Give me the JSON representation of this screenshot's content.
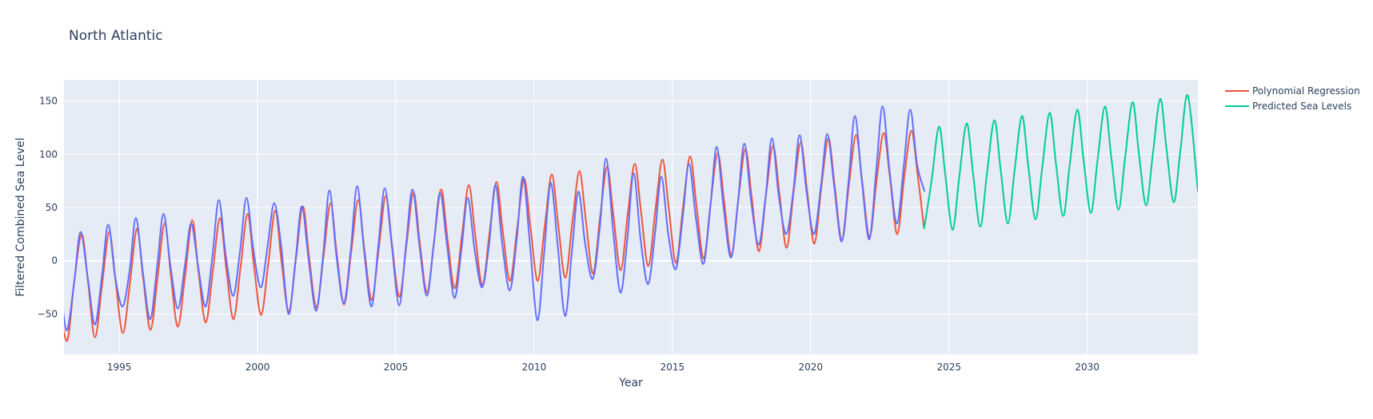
{
  "chart_data": {
    "type": "line",
    "title": "North Atlantic",
    "xlabel": "Year",
    "ylabel": "Filtered Combined Sea Level",
    "xlim": [
      1993.0,
      2034.0
    ],
    "ylim": [
      -88,
      170
    ],
    "x_ticks": [
      1995,
      2000,
      2005,
      2010,
      2015,
      2020,
      2025,
      2030
    ],
    "y_ticks": [
      -50,
      0,
      50,
      100,
      150
    ],
    "grid": true,
    "legend_position": "top-right",
    "colors": {
      "plot_bg": "#e5ecf6",
      "grid": "#ffffff",
      "text": "#2a3f5f",
      "regression": "#ef553b",
      "predicted": "#00cc96",
      "observed": "#636efa"
    },
    "series": [
      {
        "name": "Polynomial Regression",
        "color": "#ef553b",
        "x": [
          1992.85,
          1993.12,
          1993.37,
          1993.64,
          1993.87,
          1994.12,
          1994.39,
          1994.64,
          1994.87,
          1995.13,
          1995.39,
          1995.64,
          1995.87,
          1996.13,
          1996.39,
          1996.64,
          1996.87,
          1997.12,
          1997.39,
          1997.64,
          1997.87,
          1998.13,
          1998.39,
          1998.64,
          1998.87,
          1999.13,
          1999.39,
          1999.64,
          1999.87,
          2000.13,
          2000.39,
          2000.64,
          2000.87,
          2001.13,
          2001.39,
          2001.64,
          2001.87,
          2002.13,
          2002.39,
          2002.64,
          2002.87,
          2003.13,
          2003.39,
          2003.64,
          2003.87,
          2004.13,
          2004.39,
          2004.64,
          2004.87,
          2005.13,
          2005.39,
          2005.64,
          2005.87,
          2006.13,
          2006.39,
          2006.64,
          2006.87,
          2007.13,
          2007.39,
          2007.64,
          2007.87,
          2008.13,
          2008.39,
          2008.64,
          2008.87,
          2009.13,
          2009.39,
          2009.64,
          2009.87,
          2010.13,
          2010.39,
          2010.64,
          2010.87,
          2011.13,
          2011.39,
          2011.64,
          2011.87,
          2012.13,
          2012.39,
          2012.64,
          2012.87,
          2013.13,
          2013.39,
          2013.64,
          2013.87,
          2014.13,
          2014.39,
          2014.64,
          2014.87,
          2015.13,
          2015.39,
          2015.64,
          2015.87,
          2016.13,
          2016.39,
          2016.64,
          2016.87,
          2017.13,
          2017.39,
          2017.64,
          2017.87,
          2018.13,
          2018.39,
          2018.64,
          2018.87,
          2019.13,
          2019.39,
          2019.64,
          2019.87,
          2020.13,
          2020.39,
          2020.64,
          2020.87,
          2021.13,
          2021.39,
          2021.64,
          2021.87,
          2022.13,
          2022.39,
          2022.64,
          2022.87,
          2023.13,
          2023.39,
          2023.64,
          2023.87,
          2024.1
        ],
        "y": [
          -45,
          -75,
          -20,
          25,
          -20,
          -72,
          -20,
          27,
          -20,
          -68,
          -20,
          30,
          -18,
          -65,
          -15,
          35,
          -15,
          -62,
          -12,
          38,
          -12,
          -58,
          -8,
          40,
          -8,
          -55,
          -5,
          44,
          -5,
          -51,
          -2,
          47,
          -2,
          -48,
          2,
          51,
          2,
          -44,
          5,
          54,
          5,
          -41,
          9,
          57,
          9,
          -37,
          13,
          61,
          13,
          -34,
          16,
          64,
          16,
          -30,
          20,
          67,
          20,
          -26,
          24,
          71,
          24,
          -23,
          27,
          74,
          27,
          -19,
          31,
          77,
          31,
          -19,
          34,
          81,
          34,
          -16,
          38,
          84,
          38,
          -12,
          42,
          88,
          42,
          -9,
          45,
          91,
          45,
          -5,
          49,
          95,
          49,
          -2,
          52,
          98,
          52,
          2,
          56,
          101,
          56,
          5,
          59,
          105,
          59,
          9,
          63,
          108,
          63,
          12,
          66,
          111,
          66,
          16,
          70,
          115,
          70,
          19,
          73,
          118,
          73,
          22,
          77,
          120,
          77,
          25,
          80,
          122,
          80,
          30
        ]
      },
      {
        "name": "Predicted Sea Levels",
        "color": "#00cc96",
        "x": [
          2024.1,
          2024.37,
          2024.64,
          2024.87,
          2025.13,
          2025.37,
          2025.64,
          2025.87,
          2026.13,
          2026.37,
          2026.64,
          2026.87,
          2027.13,
          2027.37,
          2027.64,
          2027.87,
          2028.13,
          2028.37,
          2028.64,
          2028.87,
          2029.13,
          2029.37,
          2029.64,
          2029.87,
          2030.13,
          2030.37,
          2030.64,
          2030.87,
          2031.13,
          2031.37,
          2031.64,
          2031.87,
          2032.13,
          2032.37,
          2032.64,
          2032.87,
          2033.13,
          2033.37,
          2033.64,
          2034.0
        ],
        "y": [
          30,
          75,
          126,
          80,
          29,
          78,
          129,
          82,
          32,
          81,
          132,
          85,
          35,
          84,
          136,
          88,
          39,
          87,
          139,
          91,
          42,
          91,
          142,
          94,
          45,
          94,
          145,
          97,
          48,
          97,
          149,
          100,
          52,
          100,
          152,
          104,
          55,
          104,
          155,
          65
        ]
      },
      {
        "name": "",
        "color": "#636efa",
        "x": [
          1992.85,
          1992.95,
          1993.12,
          1993.37,
          1993.6,
          1993.87,
          1994.12,
          1994.37,
          1994.6,
          1994.85,
          1995.12,
          1995.37,
          1995.6,
          1995.85,
          1996.12,
          1996.37,
          1996.6,
          1996.85,
          1997.12,
          1997.37,
          1997.6,
          1997.85,
          1998.12,
          1998.37,
          1998.6,
          1998.85,
          1999.12,
          1999.37,
          1999.6,
          1999.85,
          2000.12,
          2000.37,
          2000.6,
          2000.85,
          2001.12,
          2001.37,
          2001.6,
          2001.85,
          2002.12,
          2002.37,
          2002.6,
          2002.85,
          2003.12,
          2003.37,
          2003.6,
          2003.85,
          2004.12,
          2004.37,
          2004.6,
          2004.85,
          2005.12,
          2005.37,
          2005.6,
          2005.85,
          2006.12,
          2006.37,
          2006.6,
          2006.85,
          2007.12,
          2007.37,
          2007.6,
          2007.85,
          2008.12,
          2008.37,
          2008.6,
          2008.85,
          2009.12,
          2009.37,
          2009.6,
          2009.85,
          2010.12,
          2010.37,
          2010.6,
          2010.85,
          2011.12,
          2011.37,
          2011.6,
          2011.85,
          2012.12,
          2012.37,
          2012.6,
          2012.85,
          2013.12,
          2013.37,
          2013.6,
          2013.85,
          2014.12,
          2014.37,
          2014.6,
          2014.85,
          2015.12,
          2015.37,
          2015.6,
          2015.85,
          2016.12,
          2016.37,
          2016.6,
          2016.85,
          2017.12,
          2017.37,
          2017.6,
          2017.85,
          2018.12,
          2018.37,
          2018.6,
          2018.85,
          2019.12,
          2019.37,
          2019.6,
          2019.85,
          2020.12,
          2020.37,
          2020.6,
          2020.85,
          2021.12,
          2021.37,
          2021.6,
          2021.85,
          2022.12,
          2022.37,
          2022.6,
          2022.85,
          2023.12,
          2023.37,
          2023.6,
          2023.85,
          2024.12
        ],
        "y": [
          18,
          -40,
          -65,
          -20,
          27,
          -18,
          -60,
          -15,
          34,
          -15,
          -43,
          -10,
          40,
          -10,
          -55,
          -5,
          44,
          -5,
          -45,
          -5,
          35,
          -5,
          -43,
          5,
          57,
          5,
          -33,
          10,
          59,
          10,
          -25,
          15,
          54,
          15,
          -50,
          0,
          51,
          0,
          -47,
          5,
          66,
          5,
          -40,
          10,
          70,
          10,
          -43,
          15,
          68,
          15,
          -42,
          15,
          67,
          15,
          -33,
          15,
          64,
          15,
          -35,
          10,
          59,
          10,
          -25,
          15,
          71,
          15,
          -28,
          20,
          79,
          15,
          -56,
          10,
          73,
          15,
          -52,
          10,
          65,
          15,
          -17,
          30,
          96,
          30,
          -30,
          20,
          82,
          20,
          -22,
          25,
          79,
          25,
          -8,
          40,
          91,
          40,
          -3,
          50,
          107,
          50,
          3,
          55,
          110,
          55,
          15,
          60,
          115,
          60,
          25,
          65,
          118,
          65,
          25,
          70,
          119,
          70,
          18,
          75,
          136,
          75,
          20,
          85,
          145,
          85,
          35,
          90,
          142,
          90,
          65
        ]
      }
    ]
  }
}
